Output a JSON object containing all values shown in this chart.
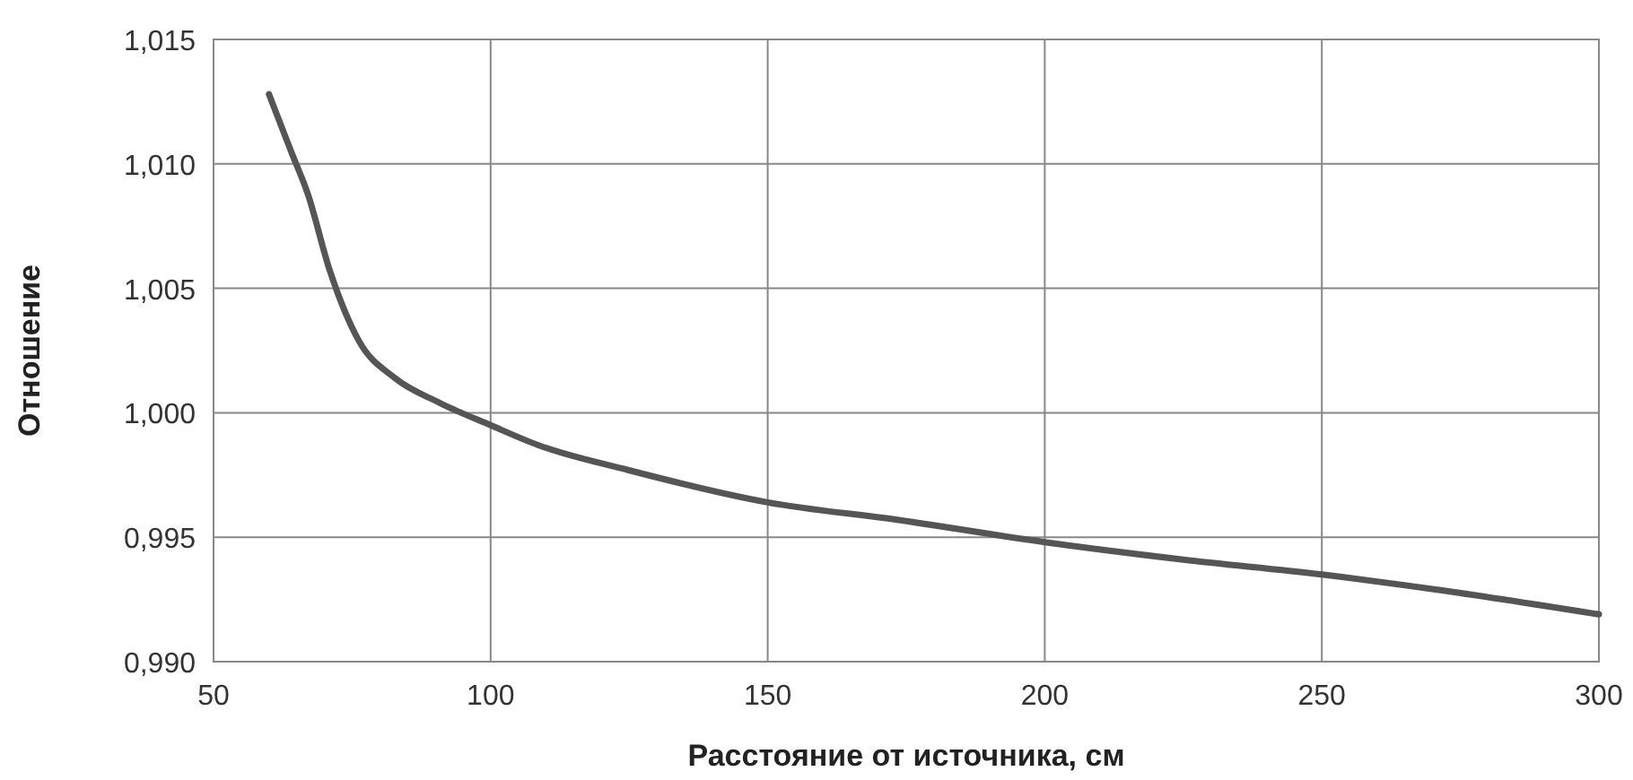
{
  "chart_data": {
    "type": "line",
    "xlabel": "Расстояние от источника, см",
    "ylabel": "Отношение",
    "x": [
      60,
      64,
      67,
      71,
      76.2,
      82.7,
      90.8,
      100,
      108.6,
      124.8,
      150,
      173.4,
      200,
      225,
      250,
      270.5,
      300
    ],
    "series": [
      {
        "color": "#555555",
        "values": [
          1.0128,
          1.0105,
          1.0088,
          1.0057,
          1.0029,
          1.0014,
          1.0004,
          0.9995,
          0.9987,
          0.9977,
          0.9964,
          0.9957,
          0.9948,
          0.9941,
          0.9935,
          0.9929,
          0.9919
        ]
      }
    ],
    "xlim": [
      50,
      300
    ],
    "xticks": [
      50,
      100,
      150,
      200,
      250,
      300
    ],
    "ylim": [
      0.99,
      1.015
    ],
    "yticks": [
      {
        "value": 0.99,
        "label": "0,990"
      },
      {
        "value": 0.995,
        "label": "0,995"
      },
      {
        "value": 1,
        "label": "1,000"
      },
      {
        "value": 1.005,
        "label": "1,005"
      },
      {
        "value": 1.01,
        "label": "1,010"
      },
      {
        "value": 1.015,
        "label": "1,015"
      }
    ],
    "grid": true,
    "marker": "none",
    "line_style": "solid"
  }
}
